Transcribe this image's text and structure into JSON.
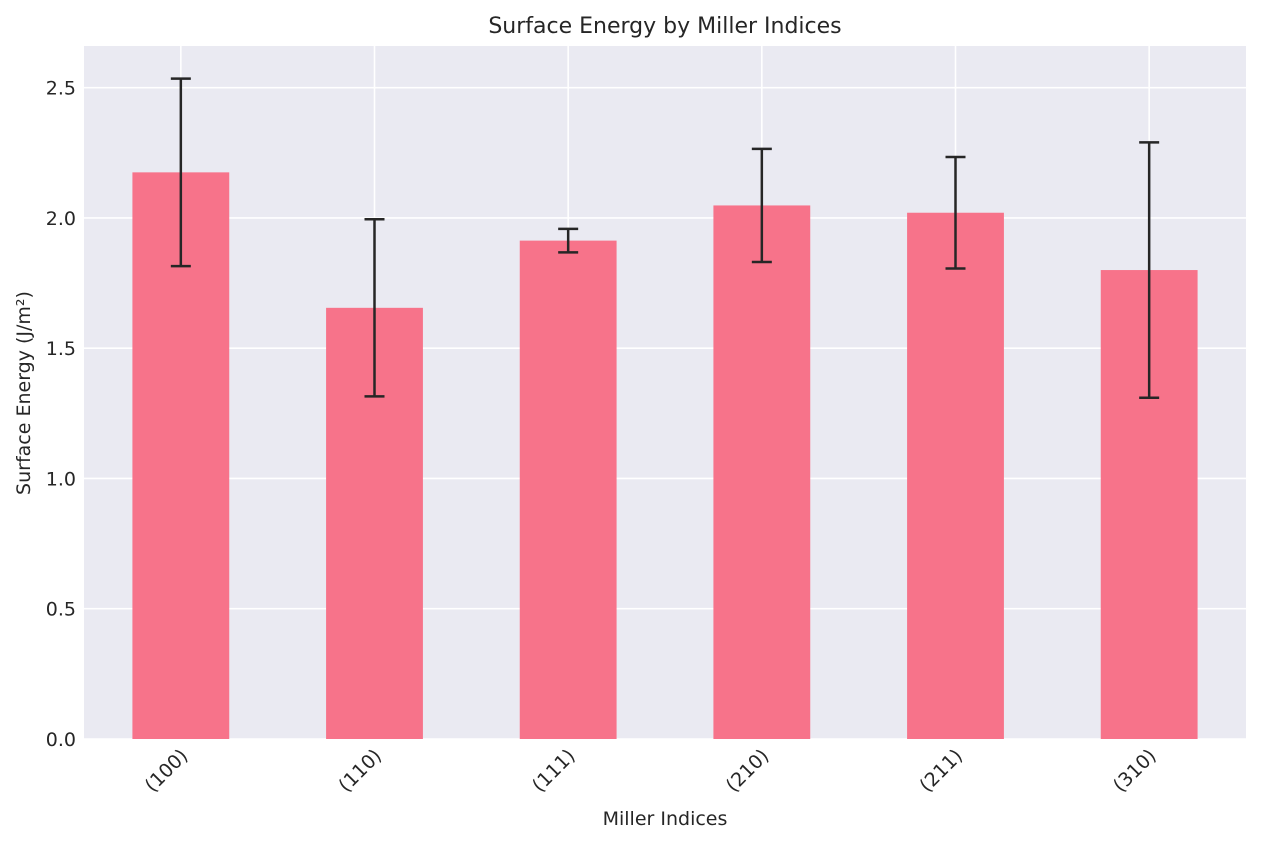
{
  "chart_data": {
    "type": "bar",
    "title": "Surface Energy by Miller Indices",
    "xlabel": "Miller Indices",
    "ylabel": "Surface Energy (J/m²)",
    "categories": [
      "(100)",
      "(110)",
      "(111)",
      "(210)",
      "(211)",
      "(310)"
    ],
    "values": [
      2.175,
      1.655,
      1.913,
      2.048,
      2.02,
      1.8
    ],
    "errors": [
      0.36,
      0.34,
      0.045,
      0.217,
      0.214,
      0.49
    ],
    "ylim": [
      0,
      2.66
    ],
    "yticks": [
      "0.0",
      "0.5",
      "1.0",
      "1.5",
      "2.0",
      "2.5"
    ],
    "grid": true,
    "colors": {
      "bar": "#f7738a",
      "background": "#eaeaf2",
      "grid": "#ffffff",
      "error": "#262626"
    }
  }
}
